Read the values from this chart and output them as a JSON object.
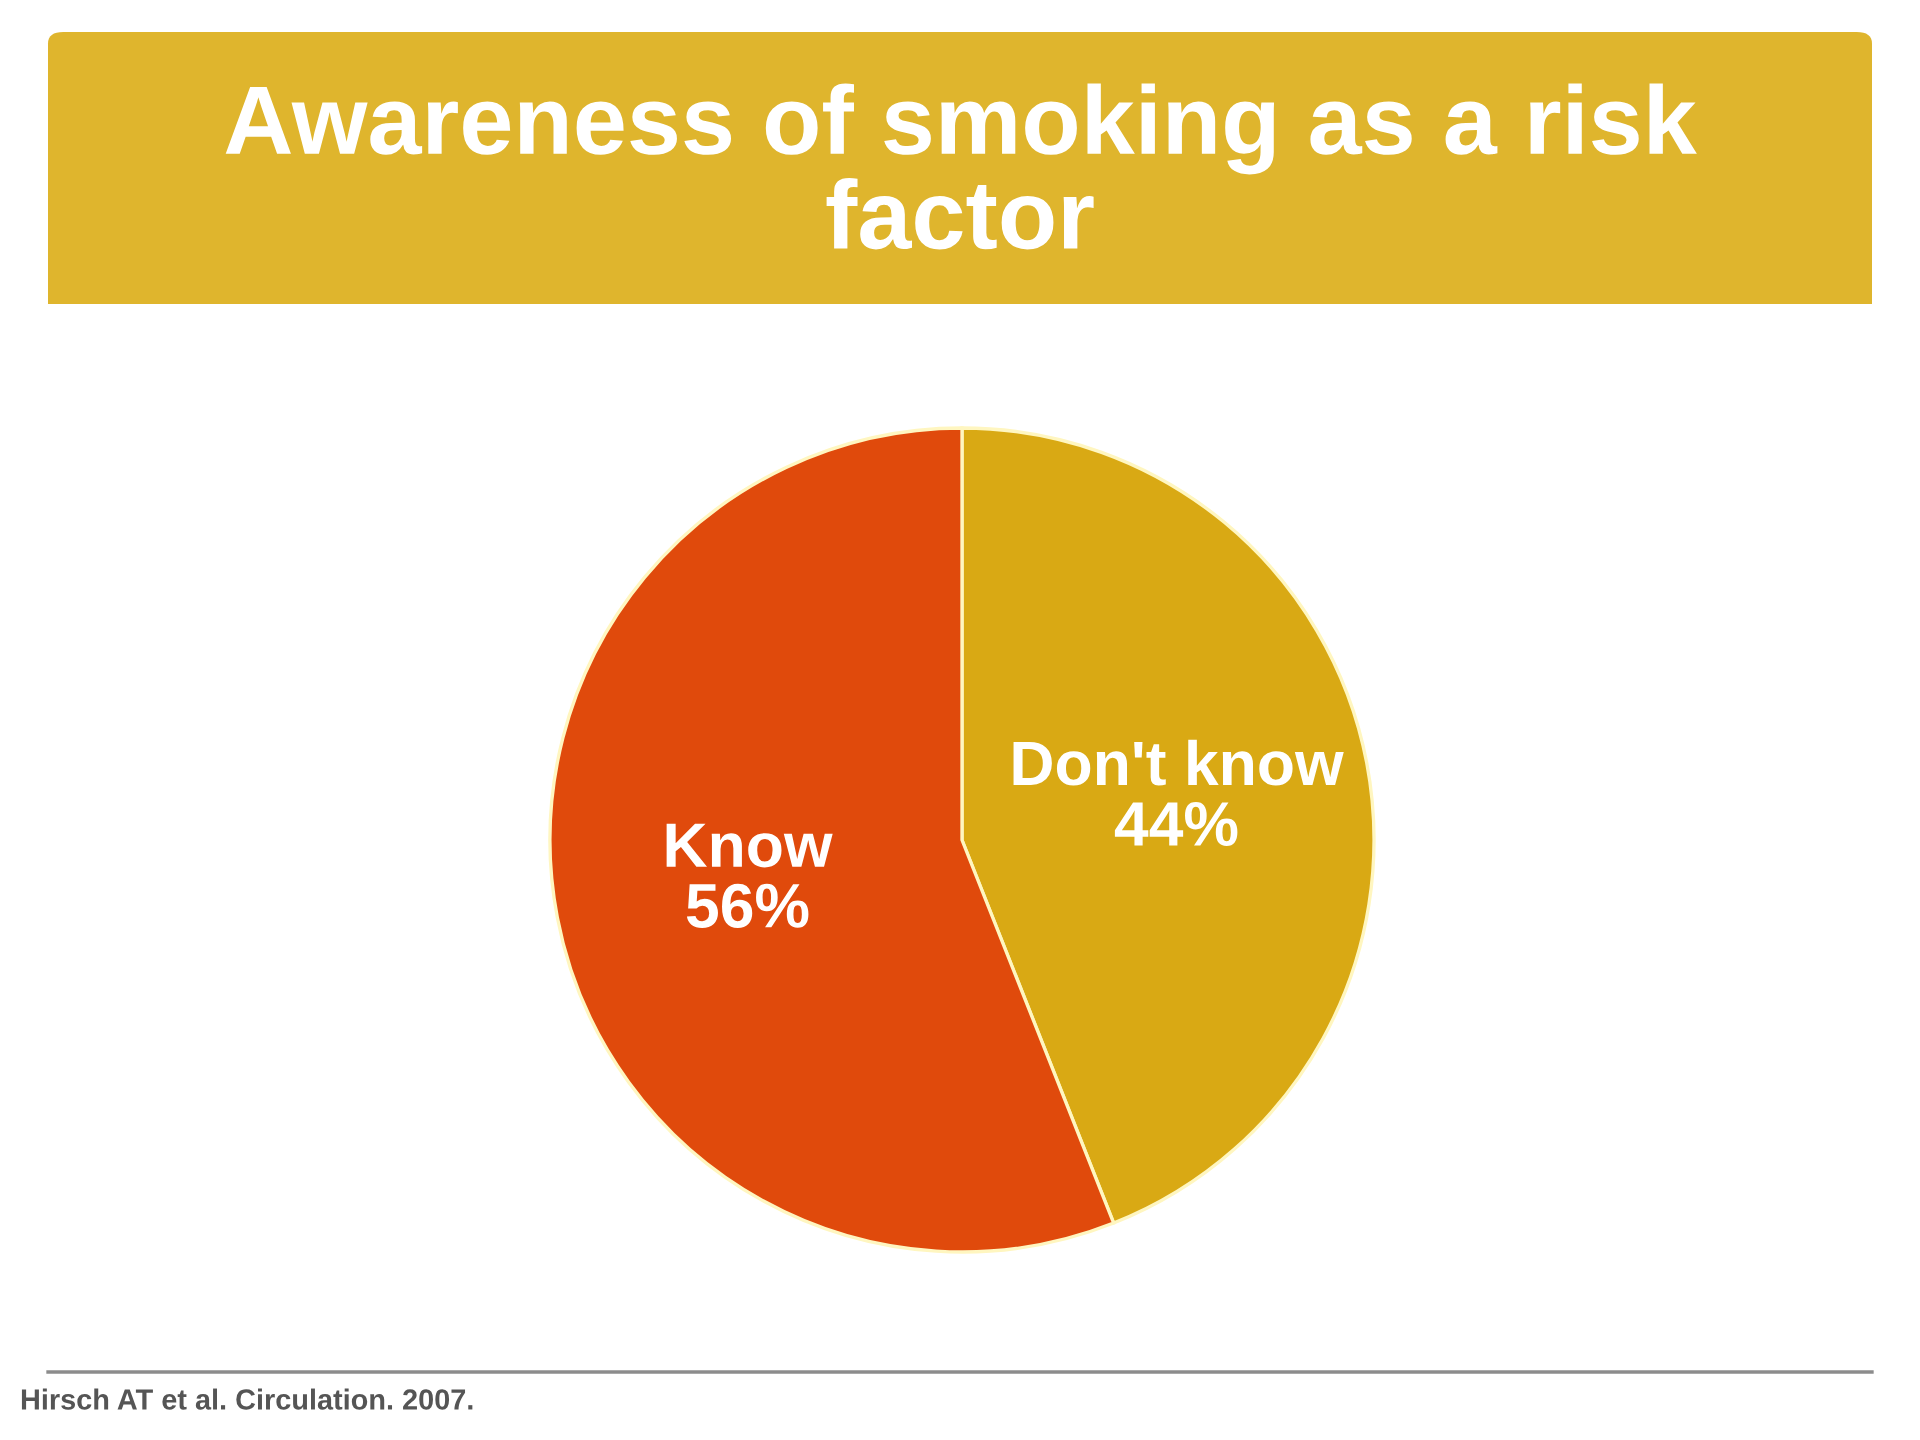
{
  "chart_data": {
    "type": "pie",
    "title": "Awareness of smoking as a risk factor",
    "categories": [
      "Don't know",
      "Know"
    ],
    "values": [
      44,
      56
    ],
    "value_labels": [
      "44%",
      "56%"
    ],
    "colors": [
      "#d9a914",
      "#e04a0c"
    ],
    "annotations": [
      "Hirsch AT et al. Circulation. 2007."
    ]
  }
}
